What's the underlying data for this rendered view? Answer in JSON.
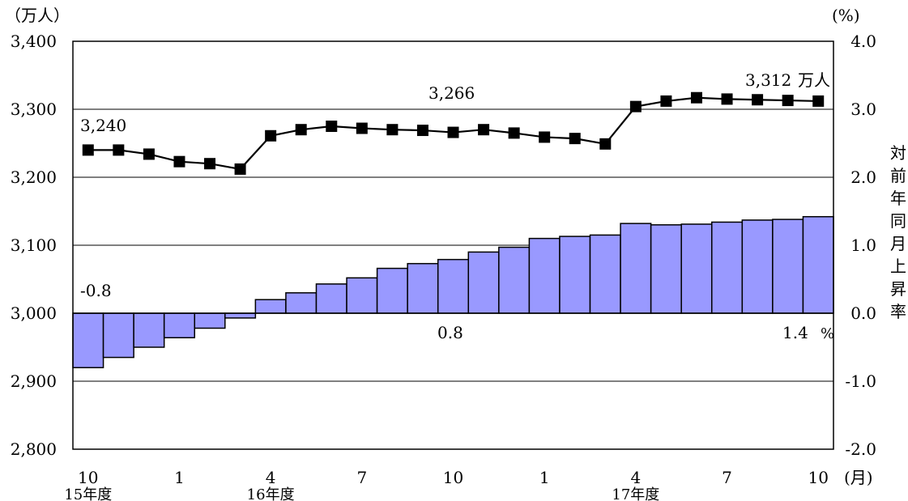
{
  "chart_data": {
    "type": "bar+line",
    "left_axis": {
      "unit": "（万人）",
      "range": [
        2800,
        3400
      ],
      "ticks": [
        "3,400",
        "3,300",
        "3,200",
        "3,100",
        "3,000",
        "2,900",
        "2,800"
      ],
      "tick_values": [
        3400,
        3300,
        3200,
        3100,
        3000,
        2900,
        2800
      ]
    },
    "right_axis": {
      "unit": "(%)",
      "label": "対前年同月上昇率",
      "range": [
        -2.0,
        4.0
      ],
      "ticks": [
        "4.0",
        "3.0",
        "2.0",
        "1.0",
        "0.0",
        "-1.0",
        "-2.0"
      ],
      "tick_values": [
        4.0,
        3.0,
        2.0,
        1.0,
        0.0,
        -1.0,
        -2.0
      ]
    },
    "x_axis": {
      "unit": "(月)",
      "tick_labels": [
        {
          "index": 0,
          "label": "10"
        },
        {
          "index": 3,
          "label": "1"
        },
        {
          "index": 6,
          "label": "4"
        },
        {
          "index": 9,
          "label": "7"
        },
        {
          "index": 12,
          "label": "10"
        },
        {
          "index": 15,
          "label": "1"
        },
        {
          "index": 18,
          "label": "4"
        },
        {
          "index": 21,
          "label": "7"
        },
        {
          "index": 24,
          "label": "10"
        }
      ],
      "year_labels": [
        {
          "index": 0,
          "label": "15年度"
        },
        {
          "index": 6,
          "label": "16年度"
        },
        {
          "index": 18,
          "label": "17年度"
        }
      ]
    },
    "line_series_values": [
      3240,
      3240,
      3234,
      3223,
      3220,
      3212,
      3261,
      3270,
      3275,
      3272,
      3270,
      3269,
      3266,
      3270,
      3265,
      3259,
      3257,
      3249,
      3304,
      3312,
      3317,
      3315,
      3314,
      3313,
      3312
    ],
    "bar_series_values": [
      -0.8,
      -0.65,
      -0.5,
      -0.36,
      -0.22,
      -0.07,
      0.2,
      0.3,
      0.43,
      0.52,
      0.66,
      0.73,
      0.79,
      0.9,
      0.97,
      1.1,
      1.13,
      1.15,
      1.32,
      1.3,
      1.31,
      1.34,
      1.37,
      1.38,
      1.42
    ],
    "annotations": {
      "line_start": "3,240",
      "line_mid": "3,266",
      "line_end_value": "3,312",
      "line_end_unit": "万人",
      "bar_start": "-0.8",
      "bar_mid": "0.8",
      "bar_end_value": "1.4",
      "bar_end_unit": "%"
    },
    "colors": {
      "bar_fill": "#9999ff",
      "bar_stroke": "#000000",
      "line": "#000000",
      "marker": "#000000"
    },
    "grid": true
  }
}
